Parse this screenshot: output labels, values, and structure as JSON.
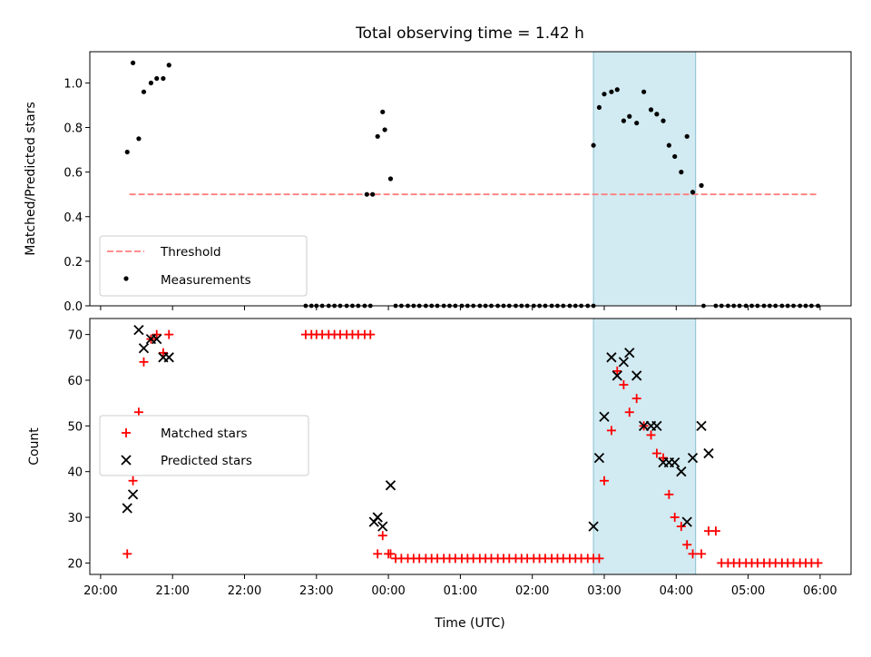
{
  "chart_data": {
    "title": "Total observing time = 1.42 h",
    "shaded_region": {
      "x_start": 2.85,
      "x_end": 4.27,
      "color": "#add8e6"
    },
    "panels": [
      {
        "type": "scatter",
        "ylabel": "Matched/Predicted stars",
        "ylim": [
          0,
          1.14
        ],
        "yticks": [
          {
            "value": 0.0,
            "label": "0.0"
          },
          {
            "value": 0.2,
            "label": "0.2"
          },
          {
            "value": 0.4,
            "label": "0.4"
          },
          {
            "value": 0.6,
            "label": "0.6"
          },
          {
            "value": 0.8,
            "label": "0.8"
          },
          {
            "value": 1.0,
            "label": "1.0"
          }
        ],
        "legend": {
          "placement": "lower-left",
          "entries": [
            "Threshold",
            "Measurements"
          ]
        },
        "threshold": {
          "name": "Threshold",
          "value": 0.5,
          "x_start": 20.4,
          "x_end": 5.95,
          "color": "#ff7f7f",
          "style": "dashed"
        },
        "measurements": {
          "name": "Measurements",
          "color": "#000000",
          "x": [
            20.37,
            20.45,
            20.53,
            20.6,
            20.7,
            20.78,
            20.87,
            20.95,
            23.7,
            23.78,
            23.85,
            23.92,
            23.95,
            24.03,
            26.85,
            26.93,
            27.0,
            27.1,
            27.18,
            27.27,
            27.35,
            27.45,
            27.55,
            27.65,
            27.73,
            27.82,
            27.9,
            27.98,
            28.07,
            28.15,
            28.23,
            28.35
          ],
          "y": [
            0.69,
            1.09,
            0.75,
            0.96,
            1.0,
            1.02,
            1.02,
            1.08,
            0.5,
            0.5,
            0.76,
            0.87,
            0.79,
            0.57,
            0.72,
            0.89,
            0.95,
            0.96,
            0.97,
            0.83,
            0.85,
            0.82,
            0.96,
            0.88,
            0.86,
            0.83,
            0.72,
            0.67,
            0.6,
            0.76,
            0.51,
            0.54
          ],
          "zeros_x": [
            22.85,
            22.93,
            23.0,
            23.08,
            23.17,
            23.25,
            23.33,
            23.42,
            23.5,
            23.58,
            23.67,
            23.75,
            24.1,
            24.18,
            24.27,
            24.35,
            24.43,
            24.52,
            24.6,
            24.68,
            24.77,
            24.85,
            24.93,
            25.02,
            25.1,
            25.18,
            25.27,
            25.35,
            25.43,
            25.52,
            25.6,
            25.68,
            25.77,
            25.85,
            25.93,
            26.02,
            26.1,
            26.18,
            26.27,
            26.35,
            26.43,
            26.52,
            26.6,
            26.68,
            26.77,
            26.85,
            28.38,
            28.55,
            28.63,
            28.72,
            28.8,
            28.88,
            28.97,
            29.05,
            29.13,
            29.22,
            29.3,
            29.38,
            29.47,
            29.55,
            29.63,
            29.72,
            29.8,
            29.88,
            29.97
          ]
        }
      },
      {
        "type": "scatter",
        "ylabel": "Count",
        "xlabel": "Time (UTC)",
        "ylim": [
          17.5,
          73.5
        ],
        "yticks": [
          {
            "value": 20,
            "label": "20"
          },
          {
            "value": 30,
            "label": "30"
          },
          {
            "value": 40,
            "label": "40"
          },
          {
            "value": 50,
            "label": "50"
          },
          {
            "value": 60,
            "label": "60"
          },
          {
            "value": 70,
            "label": "70"
          }
        ],
        "legend": {
          "placement": "center-left",
          "entries": [
            "Matched stars",
            "Predicted stars"
          ]
        },
        "matched": {
          "name": "Matched stars",
          "marker": "+",
          "color": "#ff0000",
          "x": [
            20.37,
            20.45,
            20.53,
            20.6,
            20.7,
            20.78,
            20.87,
            20.95,
            22.85,
            22.93,
            23.0,
            23.08,
            23.17,
            23.25,
            23.33,
            23.42,
            23.5,
            23.58,
            23.67,
            23.75,
            23.85,
            23.92,
            24.0,
            24.03,
            24.1,
            24.18,
            24.27,
            24.35,
            24.43,
            24.52,
            24.6,
            24.68,
            24.77,
            24.85,
            24.93,
            25.02,
            25.1,
            25.18,
            25.27,
            25.35,
            25.43,
            25.52,
            25.6,
            25.68,
            25.77,
            25.85,
            25.93,
            26.02,
            26.1,
            26.18,
            26.27,
            26.35,
            26.43,
            26.52,
            26.6,
            26.68,
            26.77,
            26.85,
            26.93,
            27.0,
            27.1,
            27.18,
            27.27,
            27.35,
            27.45,
            27.55,
            27.65,
            27.73,
            27.82,
            27.9,
            27.98,
            28.07,
            28.15,
            28.23,
            28.35,
            28.45,
            28.55,
            28.63,
            28.72,
            28.8,
            28.88,
            28.97,
            29.05,
            29.13,
            29.22,
            29.3,
            29.38,
            29.47,
            29.55,
            29.63,
            29.72,
            29.8,
            29.88,
            29.97
          ],
          "y": [
            22,
            38,
            53,
            64,
            69,
            70,
            66,
            70,
            70,
            70,
            70,
            70,
            70,
            70,
            70,
            70,
            70,
            70,
            70,
            70,
            22,
            26,
            22,
            22,
            21,
            21,
            21,
            21,
            21,
            21,
            21,
            21,
            21,
            21,
            21,
            21,
            21,
            21,
            21,
            21,
            21,
            21,
            21,
            21,
            21,
            21,
            21,
            21,
            21,
            21,
            21,
            21,
            21,
            21,
            21,
            21,
            21,
            21,
            21,
            38,
            49,
            62,
            59,
            53,
            56,
            50,
            48,
            44,
            43,
            35,
            30,
            28,
            24,
            22,
            22,
            27,
            27,
            20,
            20,
            20,
            20,
            20,
            20,
            20,
            20,
            20,
            20,
            20,
            20,
            20,
            20,
            20,
            20,
            20
          ]
        },
        "predicted": {
          "name": "Predicted stars",
          "marker": "x",
          "color": "#000000",
          "x": [
            20.37,
            20.45,
            20.53,
            20.6,
            20.7,
            20.78,
            20.87,
            20.95,
            23.8,
            23.85,
            23.92,
            24.03,
            26.85,
            26.93,
            27.0,
            27.1,
            27.18,
            27.27,
            27.35,
            27.45,
            27.55,
            27.65,
            27.73,
            27.82,
            27.9,
            27.98,
            28.07,
            28.15,
            28.23,
            28.35
          ],
          "y": [
            32,
            35,
            71,
            67,
            69,
            69,
            65,
            65,
            29,
            30,
            28,
            37,
            28,
            43,
            52,
            65,
            61,
            64,
            66,
            61,
            50,
            50,
            50,
            42,
            42,
            42,
            40,
            29,
            43,
            50
          ]
        },
        "predicted_extra": {
          "x": [
            28.45
          ],
          "y": [
            44
          ]
        }
      }
    ],
    "xticks": [
      {
        "value": 20,
        "label": "20:00"
      },
      {
        "value": 21,
        "label": "21:00"
      },
      {
        "value": 22,
        "label": "22:00"
      },
      {
        "value": 23,
        "label": "23:00"
      },
      {
        "value": 24,
        "label": "00:00"
      },
      {
        "value": 25,
        "label": "01:00"
      },
      {
        "value": 26,
        "label": "02:00"
      },
      {
        "value": 27,
        "label": "03:00"
      },
      {
        "value": 28,
        "label": "04:00"
      },
      {
        "value": 29,
        "label": "05:00"
      },
      {
        "value": 30,
        "label": "06:00"
      }
    ],
    "xlim": [
      19.85,
      30.43
    ]
  }
}
